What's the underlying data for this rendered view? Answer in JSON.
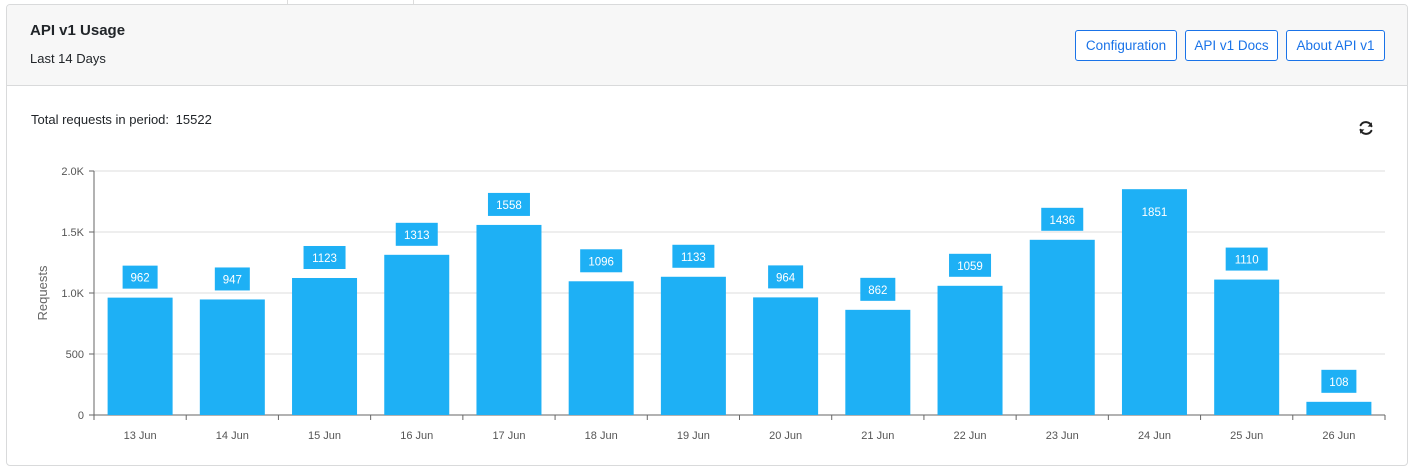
{
  "header": {
    "title": "API v1 Usage",
    "subtitle": "Last 14 Days",
    "buttons": {
      "configuration": "Configuration",
      "docs": "API v1 Docs",
      "about": "About API v1"
    }
  },
  "summary": {
    "total_label": "Total requests in period:",
    "total_value": "15522"
  },
  "icons": {
    "refresh": "refresh-icon"
  },
  "colors": {
    "bar": "#1eb0f5",
    "accent": "#1a73e8",
    "grid": "#dddddd"
  },
  "chart_data": {
    "type": "bar",
    "categories": [
      "13 Jun",
      "14 Jun",
      "15 Jun",
      "16 Jun",
      "17 Jun",
      "18 Jun",
      "19 Jun",
      "20 Jun",
      "21 Jun",
      "22 Jun",
      "23 Jun",
      "24 Jun",
      "25 Jun",
      "26 Jun"
    ],
    "values": [
      962,
      947,
      1123,
      1313,
      1558,
      1096,
      1133,
      964,
      862,
      1059,
      1436,
      1851,
      1110,
      108
    ],
    "ylabel": "Requests",
    "xlabel": "",
    "ylim": [
      0,
      2000
    ],
    "yticks": [
      0,
      500,
      1000,
      1500,
      2000
    ],
    "ytick_labels": [
      "0",
      "500",
      "1.0K",
      "1.5K",
      "2.0K"
    ],
    "grid": true,
    "data_labels": true
  }
}
